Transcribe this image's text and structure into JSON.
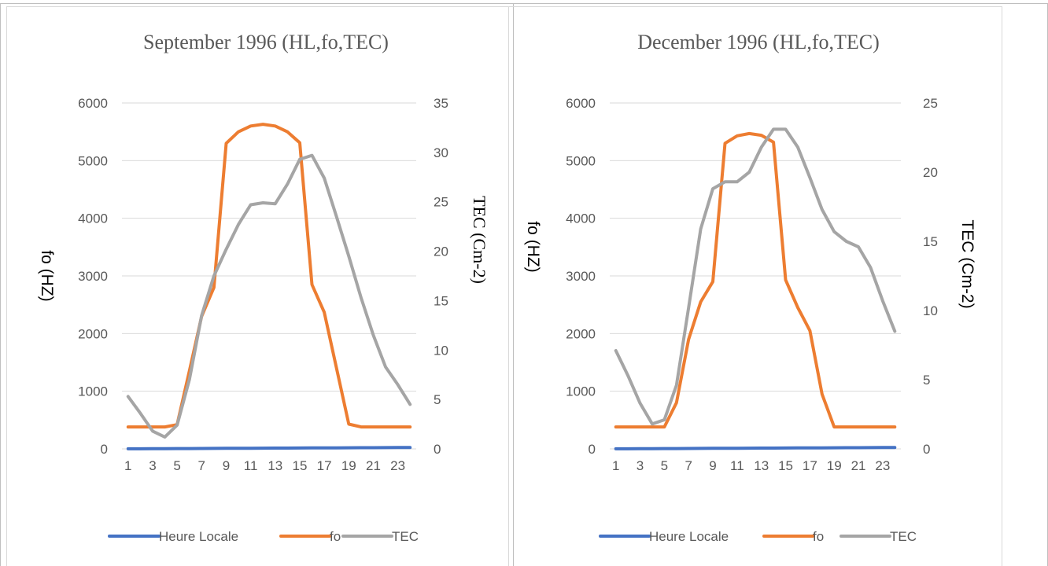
{
  "chart_data": [
    {
      "type": "line",
      "title": "September 1996 (HL,fo,TEC)",
      "xlabel": "",
      "ylabel": "fo (HZ)",
      "y2label": "TEC (Cm-2)",
      "x": [
        1,
        2,
        3,
        4,
        5,
        6,
        7,
        8,
        9,
        10,
        11,
        12,
        13,
        14,
        15,
        16,
        17,
        18,
        19,
        20,
        21,
        22,
        23,
        24
      ],
      "xticks": [
        "1",
        "3",
        "5",
        "7",
        "9",
        "11",
        "13",
        "15",
        "17",
        "19",
        "21",
        "23"
      ],
      "ylim": [
        0,
        6000
      ],
      "yticks": [
        "0",
        "1000",
        "2000",
        "3000",
        "4000",
        "5000",
        "6000"
      ],
      "y2lim": [
        0,
        35
      ],
      "y2ticks": [
        "0",
        "5",
        "10",
        "15",
        "20",
        "25",
        "30",
        "35"
      ],
      "grid": true,
      "legend_position": "bottom",
      "series": [
        {
          "name": "Heure Locale",
          "axis": "left",
          "color": "#4472C4",
          "values": [
            1,
            2,
            3,
            4,
            5,
            6,
            7,
            8,
            9,
            10,
            11,
            12,
            13,
            14,
            15,
            16,
            17,
            18,
            19,
            20,
            21,
            22,
            23,
            24
          ]
        },
        {
          "name": "fo",
          "axis": "left",
          "color": "#ED7D31",
          "values": [
            380,
            380,
            380,
            380,
            420,
            1350,
            2300,
            2800,
            5300,
            5500,
            5600,
            5630,
            5600,
            5500,
            5310,
            2850,
            2370,
            1400,
            430,
            380,
            380,
            380,
            380,
            380
          ]
        },
        {
          "name": "TEC",
          "axis": "right",
          "color": "#A5A5A5",
          "values": [
            5.3,
            3.6,
            1.8,
            1.2,
            2.4,
            7.0,
            13.5,
            17.5,
            20.2,
            22.7,
            24.7,
            24.9,
            24.8,
            26.8,
            29.3,
            29.7,
            27.4,
            23.5,
            19.5,
            15.3,
            11.5,
            8.3,
            6.5,
            4.5
          ]
        }
      ]
    },
    {
      "type": "line",
      "title": "December 1996 (HL,fo,TEC)",
      "xlabel": "",
      "ylabel": "fo (HZ)",
      "y2label": "TEC (Cm-2)",
      "x": [
        1,
        2,
        3,
        4,
        5,
        6,
        7,
        8,
        9,
        10,
        11,
        12,
        13,
        14,
        15,
        16,
        17,
        18,
        19,
        20,
        21,
        22,
        23,
        24
      ],
      "xticks": [
        "1",
        "3",
        "5",
        "7",
        "9",
        "11",
        "13",
        "15",
        "17",
        "19",
        "21",
        "23"
      ],
      "ylim": [
        0,
        6000
      ],
      "yticks": [
        "0",
        "1000",
        "2000",
        "3000",
        "4000",
        "5000",
        "6000"
      ],
      "y2lim": [
        0,
        25
      ],
      "y2ticks": [
        "0",
        "5",
        "10",
        "15",
        "20",
        "25"
      ],
      "grid": true,
      "legend_position": "bottom",
      "series": [
        {
          "name": "Heure Locale",
          "axis": "left",
          "color": "#4472C4",
          "values": [
            1,
            2,
            3,
            4,
            5,
            6,
            7,
            8,
            9,
            10,
            11,
            12,
            13,
            14,
            15,
            16,
            17,
            18,
            19,
            20,
            21,
            22,
            23,
            24
          ]
        },
        {
          "name": "fo",
          "axis": "left",
          "color": "#ED7D31",
          "values": [
            380,
            380,
            380,
            380,
            380,
            800,
            1900,
            2550,
            2900,
            5300,
            5430,
            5470,
            5440,
            5320,
            2930,
            2450,
            2050,
            950,
            380,
            380,
            380,
            380,
            380,
            380
          ]
        },
        {
          "name": "TEC",
          "axis": "right",
          "color": "#A5A5A5",
          "values": [
            7.1,
            5.3,
            3.3,
            1.8,
            2.1,
            4.6,
            10.2,
            15.9,
            18.8,
            19.3,
            19.3,
            20.0,
            21.8,
            23.1,
            23.1,
            21.8,
            19.6,
            17.3,
            15.7,
            15.0,
            14.6,
            13.1,
            10.7,
            8.5
          ]
        }
      ]
    }
  ]
}
